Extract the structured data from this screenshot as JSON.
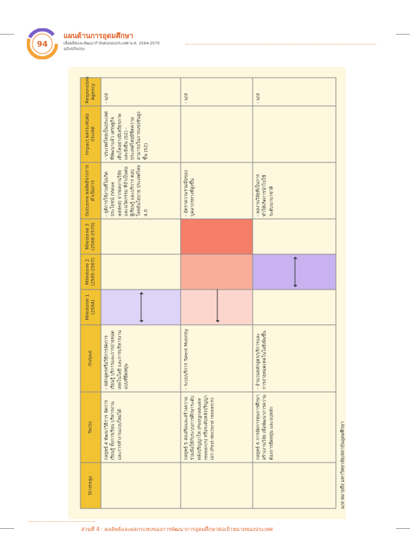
{
  "header": {
    "page_number": "94",
    "title": "แผนด้านการอุดมศึกษา",
    "subtitle": "เพื่อผลิตและพัฒนากำลังคนของประเทศ พ.ศ. 2564-2570",
    "edition": "ฉบับปรับปรุง"
  },
  "table": {
    "columns": [
      "Strategy",
      "Tactic",
      "Output",
      "Milestone 1 (2564)",
      "Milestone 2 (2565-2567)",
      "Milestone 3 (2568-2570)",
      "Outcome ผลลัพธ์จากการดำเนินการ",
      "Impact ผลกระทบต่อประเทศ",
      "Responsible Agency"
    ],
    "rows": [
      {
        "tactic": "กลยุทธ์ 4 พัฒนาวิธีการ จัดการเรียนรู้ ทั้งการเรียน บริหารงาน และการทำงานแบบใหม่ได้",
        "output": "- หลักสูตรหรือวิธีการจัดการเรียนรู้ บริการและการถ่ายทอดเทคโนโลยี และการบริหารงานแบบที่ยืดหยุ่น",
        "outcome": "- ยุติการใช้งานที่ไม่เกิดประโยชน์ (Value added) จากผลงานวิจัยและนวัตกรรม ที่จำเป็นต่อผู้เรียนรู้ และบริการ ตอบโจทย์นโยบาย ประเทศไทย 4.0",
        "impact": "- ประเทศไทยเป็นประเทศที่พัฒนาแล้ว เศรษฐกิจเติบโตอย่างมีเสถียรภาพ และยั่งยืน (S2) - ประเทศไทยมีขีดความสามารถในการแข่งขันสูงขึ้น (S2)",
        "agency": "- ม/ส"
      },
      {
        "tactic": "กลยุทธ์ 5 ส่งเสริมและสร้างความร่วมมือให้กับระบบการศึกษาระดับหลังปริญญาโท (Postgraduate research) หรือระดับหลังปริญญาเอก (Post-doctoral research)",
        "output": "- ระบบบริการ Talent Mobility",
        "outcome": "- อัตราความร่วมมือของบุคลากรทางที่สูงขึ้น",
        "agency": "- ม/ส"
      },
      {
        "tactic": "กลยุทธ์ 6 การจัดการทุนการศึกษาสร้างงานวิจัย เพื่อพัฒนาการความต้องการยืดหยุ่น และจบหลัก",
        "output": "- จำนวนหลักสูตร/บริการและการถ่ายทอดเทคโนโลยีเพิ่มขึ้น",
        "outcome": "- ผลงานวิจัยที่เป็นการทำให้เกิดการนำไปใช้ระดับนานาชาติ",
        "agency": "- ม/ส"
      }
    ]
  },
  "footnote": "ม/ส หมายถึง มหาวิทยาลัย/สถาบันอุดมศึกษา",
  "footer": "ส่วนที่ 4 : ผลลัพธ์และผลกระทบของการพัฒนาการอุดมศึกษาต่อเป้าหมายของประเทศ"
}
